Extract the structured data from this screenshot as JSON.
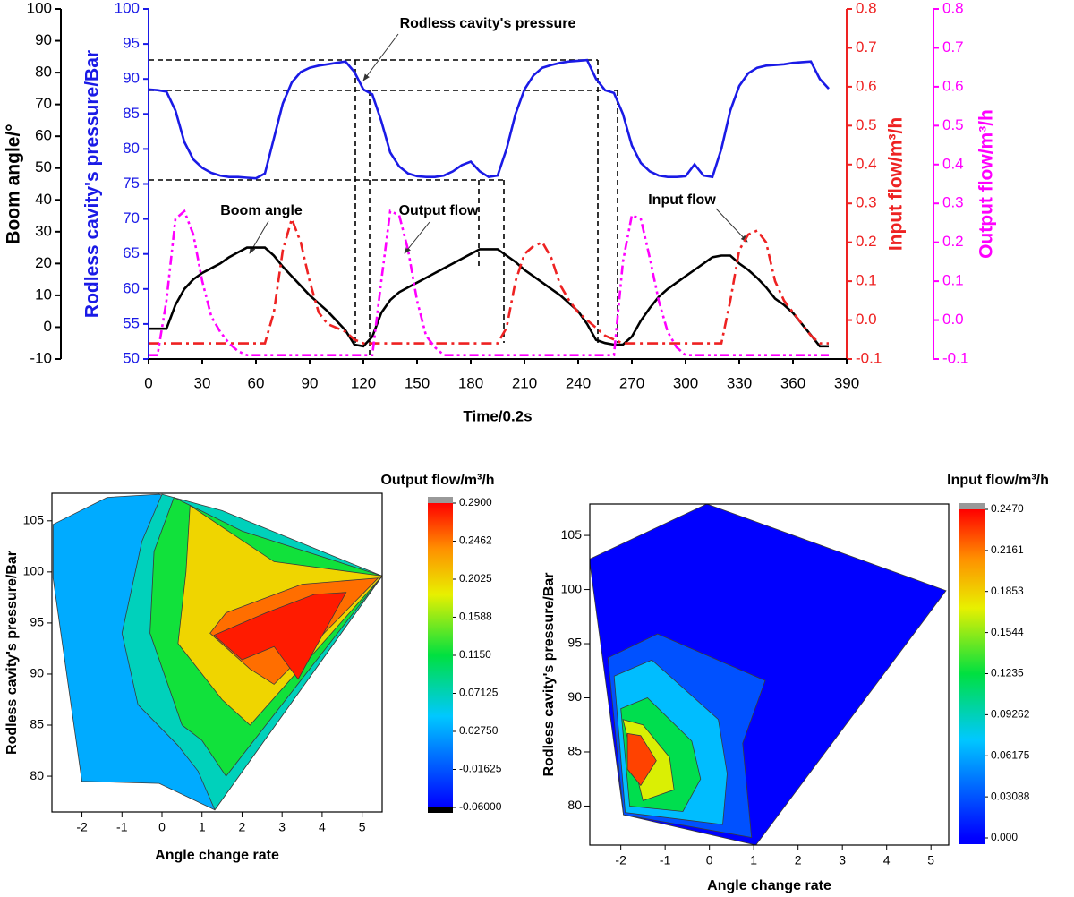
{
  "chart_data": [
    {
      "type": "line",
      "xlabel": "Time/0.2s",
      "ylabel": "Boom angle/°",
      "y2label": "Rodless cavity's pressure/Bar",
      "y3label": "Input flow/m³/h",
      "y4label": "Output flow/m³/h",
      "xlim": [
        0,
        390
      ],
      "xticks": [
        0,
        30,
        60,
        90,
        120,
        150,
        180,
        210,
        240,
        270,
        300,
        330,
        360,
        390
      ],
      "ylim": [
        -10,
        100
      ],
      "yticks": [
        -10,
        0,
        10,
        20,
        30,
        40,
        50,
        60,
        70,
        80,
        90,
        100
      ],
      "y2lim": [
        50,
        100
      ],
      "y2ticks": [
        50,
        55,
        60,
        65,
        70,
        75,
        80,
        85,
        90,
        95,
        100
      ],
      "y3lim": [
        -0.1,
        0.8
      ],
      "y3ticks": [
        -0.1,
        {
          "value": 0,
          "label": "0.0"
        },
        0.1,
        0.2,
        0.3,
        0.4,
        0.5,
        0.6,
        0.7,
        0.8
      ],
      "y4lim": [
        -0.1,
        0.8
      ],
      "y4ticks": [
        -0.1,
        {
          "value": 0,
          "label": "0.0"
        },
        0.1,
        0.2,
        0.3,
        0.4,
        0.5,
        0.6,
        0.7,
        0.8
      ],
      "annotations": [
        "Rodless cavity's pressure",
        "Boom angle",
        "Output flow",
        "Input flow"
      ],
      "x": [
        0,
        5,
        10,
        15,
        20,
        25,
        30,
        35,
        40,
        45,
        50,
        55,
        60,
        65,
        70,
        75,
        80,
        85,
        90,
        95,
        100,
        105,
        110,
        115,
        120,
        125,
        130,
        135,
        140,
        145,
        150,
        155,
        160,
        165,
        170,
        175,
        180,
        185,
        190,
        195,
        200,
        205,
        210,
        215,
        220,
        225,
        230,
        235,
        240,
        245,
        250,
        255,
        260,
        265,
        270,
        275,
        280,
        285,
        290,
        295,
        300,
        305,
        310,
        315,
        320,
        325,
        330,
        335,
        340,
        345,
        350,
        355,
        360,
        365,
        370,
        375,
        380
      ],
      "series": [
        {
          "axis": "y",
          "color": "#000000",
          "linestyle": "solid",
          "values": [
            -0.5,
            -0.5,
            -0.5,
            7,
            12,
            15,
            17,
            18.5,
            20,
            22,
            23.5,
            25,
            25,
            25,
            22.5,
            19,
            16,
            13,
            10,
            7.5,
            5,
            2,
            -1,
            -5.5,
            -6,
            -3,
            4.5,
            8.5,
            11,
            12.5,
            14,
            15.5,
            17,
            18.5,
            20,
            21.5,
            23,
            24.5,
            24.5,
            24.5,
            22.5,
            20.5,
            18,
            16,
            14,
            12,
            10,
            7.5,
            5,
            1,
            -4,
            -5,
            -5.5,
            -5.5,
            -3,
            2,
            6,
            9.5,
            12,
            14,
            16,
            18,
            20,
            22,
            22.5,
            22.5,
            20,
            18,
            15.5,
            12.5,
            9,
            7,
            4.5,
            1,
            -2.5,
            -6,
            -6
          ]
        },
        {
          "axis": "y2",
          "color": "#1a1ae6",
          "linestyle": "solid",
          "values": [
            88.5,
            88.4,
            88.2,
            85.5,
            81,
            78.5,
            77.3,
            76.6,
            76.2,
            76,
            76,
            75.9,
            75.8,
            76.5,
            81.5,
            86.5,
            89.5,
            91,
            91.6,
            91.9,
            92.1,
            92.3,
            92.5,
            91,
            88.5,
            87.8,
            84,
            79.5,
            77.5,
            76.5,
            76.1,
            76,
            76,
            76.2,
            76.8,
            77.7,
            78.2,
            76.8,
            76,
            76.2,
            80,
            85,
            88.5,
            90.5,
            91.6,
            92,
            92.3,
            92.5,
            92.6,
            92.7,
            90,
            88.4,
            88,
            85,
            80.5,
            78,
            76.8,
            76.2,
            76,
            76,
            76.1,
            77.8,
            76.2,
            76,
            80,
            85.5,
            89,
            90.8,
            91.6,
            91.9,
            92,
            92.1,
            92.3,
            92.4,
            92.5,
            90,
            88.6
          ]
        },
        {
          "axis": "y3",
          "color": "#ee2222",
          "linestyle": "dashdot",
          "values": [
            -0.06,
            -0.06,
            -0.06,
            -0.06,
            -0.06,
            -0.06,
            -0.06,
            -0.06,
            -0.06,
            -0.06,
            -0.06,
            -0.06,
            -0.06,
            -0.06,
            0.02,
            0.18,
            0.26,
            0.2,
            0.1,
            0.02,
            -0.01,
            -0.02,
            -0.03,
            -0.05,
            -0.06,
            -0.06,
            -0.06,
            -0.06,
            -0.06,
            -0.06,
            -0.06,
            -0.06,
            -0.06,
            -0.06,
            -0.06,
            -0.06,
            -0.06,
            -0.06,
            -0.06,
            -0.06,
            -0.02,
            0.1,
            0.17,
            0.19,
            0.2,
            0.16,
            0.09,
            0.05,
            0.02,
            0,
            -0.02,
            -0.04,
            -0.05,
            -0.06,
            -0.06,
            -0.06,
            -0.06,
            -0.06,
            -0.06,
            -0.06,
            -0.06,
            -0.06,
            -0.06,
            -0.06,
            -0.06,
            0.05,
            0.18,
            0.22,
            0.23,
            0.2,
            0.1,
            0.05,
            0.02,
            -0.01,
            -0.04,
            -0.06,
            -0.06
          ]
        },
        {
          "axis": "y4",
          "color": "#ff00ff",
          "linestyle": "dashdotdot",
          "values": [
            -0.09,
            -0.09,
            0.05,
            0.26,
            0.28,
            0.22,
            0.1,
            0.01,
            -0.03,
            -0.06,
            -0.08,
            -0.09,
            -0.09,
            -0.09,
            -0.09,
            -0.09,
            -0.09,
            -0.09,
            -0.09,
            -0.09,
            -0.09,
            -0.09,
            -0.09,
            -0.09,
            -0.09,
            -0.09,
            0.1,
            0.28,
            0.27,
            0.18,
            0.05,
            -0.04,
            -0.07,
            -0.09,
            -0.09,
            -0.09,
            -0.09,
            -0.09,
            -0.09,
            -0.09,
            -0.09,
            -0.09,
            -0.09,
            -0.09,
            -0.09,
            -0.09,
            -0.09,
            -0.09,
            -0.09,
            -0.09,
            -0.09,
            -0.09,
            -0.09,
            0.15,
            0.27,
            0.26,
            0.16,
            0.05,
            -0.03,
            -0.07,
            -0.09,
            -0.09,
            -0.09,
            -0.09,
            -0.09,
            -0.09,
            -0.09,
            -0.09,
            -0.09,
            -0.09,
            -0.09,
            -0.09,
            -0.09,
            -0.09,
            -0.09,
            -0.09,
            -0.09
          ]
        }
      ]
    },
    {
      "type": "contour",
      "title": "Output flow/m³/h",
      "xlabel": "Angle change rate",
      "ylabel": "Rodless cavity's pressure/Bar",
      "xlim": [
        -2.75,
        5.5
      ],
      "xticks": [
        -2,
        -1,
        0,
        1,
        2,
        3,
        4,
        5
      ],
      "ylim": [
        76.5,
        107.7
      ],
      "yticks": [
        80,
        85,
        90,
        95,
        100,
        105
      ],
      "zlim": [
        -0.06,
        0.29
      ],
      "zticks": [
        {
          "value": 0.29,
          "label": "0.2900"
        },
        0.2462,
        0.2025,
        0.1588,
        {
          "value": 0.115,
          "label": "0.1150"
        },
        0.07125,
        {
          "value": 0.0275,
          "label": "0.02750"
        },
        -0.01625,
        {
          "value": -0.06,
          "label": "-0.06000"
        }
      ],
      "regions": [
        {
          "level": 0.03,
          "x": [
            -2.72,
            -1.37,
            -0.07,
            5.5,
            1.32,
            -0.07,
            -2,
            -2.72
          ],
          "y": [
            104.65,
            107.3,
            107.6,
            99.6,
            76.7,
            79.3,
            79.5,
            99.4
          ]
        },
        {
          "level": 0.07,
          "x": [
            0,
            1.5,
            5.5,
            1.32,
            0.9,
            0.4,
            -0.6,
            -1,
            -0.5
          ],
          "y": [
            107.6,
            106,
            99.6,
            76.7,
            80.5,
            83,
            87,
            94,
            103
          ]
        },
        {
          "level": 0.12,
          "x": [
            0.3,
            2,
            5.5,
            1.6,
            1,
            0.5,
            -0.3,
            -0.2
          ],
          "y": [
            107.3,
            104,
            99.6,
            80,
            83.5,
            85,
            94,
            102
          ]
        },
        {
          "level": 0.2,
          "x": [
            0.7,
            2.8,
            5.5,
            2.2,
            1.5,
            0.4,
            0.6
          ],
          "y": [
            106.5,
            101,
            99.6,
            85,
            87.5,
            93,
            100
          ]
        },
        {
          "level": 0.25,
          "x": [
            1.6,
            3.5,
            5.4,
            2.8,
            2.2,
            1.2
          ],
          "y": [
            96,
            98.8,
            99.4,
            89,
            90.5,
            94
          ]
        },
        {
          "level": 0.28,
          "x": [
            1.3,
            2.6,
            3.8,
            4.6,
            3.4,
            2.8,
            2
          ],
          "y": [
            93.8,
            96,
            97.8,
            98,
            89.5,
            92.7,
            91.4
          ]
        }
      ]
    },
    {
      "type": "contour",
      "title": "Input flow/m³/h",
      "xlabel": "Angle change rate",
      "ylabel": "Rodless cavity's pressure/Bar",
      "xlim": [
        -2.7,
        5.4
      ],
      "xticks": [
        -2,
        -1,
        0,
        1,
        2,
        3,
        4,
        5
      ],
      "ylim": [
        76.4,
        107.9
      ],
      "yticks": [
        80,
        85,
        90,
        95,
        100,
        105
      ],
      "zlim": [
        0,
        0.247
      ],
      "zticks": [
        {
          "value": 0.247,
          "label": "0.2470"
        },
        0.2161,
        0.1853,
        0.1544,
        0.1235,
        0.09262,
        0.06175,
        0.03088,
        {
          "value": 0,
          "label": "0.000"
        }
      ],
      "regions": [
        {
          "level": 0,
          "x": [
            -2.71,
            -0.06,
            5.34,
            1.05,
            -1.94
          ],
          "y": [
            102.8,
            107.9,
            99.9,
            76.4,
            79.2
          ]
        },
        {
          "level": 0.03,
          "x": [
            -2.29,
            -1.17,
            1.26,
            0.75,
            0.95,
            -1.94
          ],
          "y": [
            93.7,
            95.9,
            91.6,
            85.8,
            77.1,
            79.2
          ]
        },
        {
          "level": 0.07,
          "x": [
            -2.15,
            -1.3,
            0.2,
            0.4,
            0.3,
            -1.9
          ],
          "y": [
            92,
            93.5,
            88,
            83,
            78.3,
            79.4
          ]
        },
        {
          "level": 0.12,
          "x": [
            -2,
            -1.4,
            -0.4,
            -0.2,
            -0.6,
            -1.8
          ],
          "y": [
            89,
            90,
            86,
            82.5,
            79.5,
            80
          ]
        },
        {
          "level": 0.17,
          "x": [
            -1.95,
            -1.5,
            -0.9,
            -0.8,
            -1.5
          ],
          "y": [
            88,
            87.5,
            84.5,
            81.5,
            80.5
          ]
        },
        {
          "level": 0.23,
          "x": [
            -1.85,
            -1.55,
            -1.2,
            -1.55,
            -1.85
          ],
          "y": [
            86.7,
            86.5,
            84.2,
            81.9,
            83.4
          ]
        }
      ]
    }
  ]
}
